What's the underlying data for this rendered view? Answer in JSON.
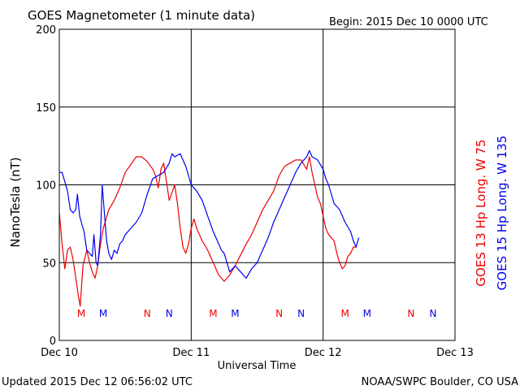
{
  "chart_data": {
    "type": "line",
    "title": "GOES Magnetometer (1 minute data)",
    "begin": "Begin:  2015 Dec 10 0000 UTC",
    "xlabel": "Universal Time",
    "ylabel": "NanoTesla (nT)",
    "footer_left": "Updated 2015 Dec 12 06:56:02 UTC",
    "footer_right": "NOAA/SWPC Boulder, CO USA",
    "x_unit": "hours since 2015 Dec 10 0000 UTC",
    "xlim": [
      0,
      72
    ],
    "ylim": [
      0,
      200
    ],
    "x_ticks": [
      {
        "x": 0,
        "label": "Dec 10"
      },
      {
        "x": 24,
        "label": "Dec 11"
      },
      {
        "x": 48,
        "label": "Dec 12"
      },
      {
        "x": 72,
        "label": "Dec 13"
      }
    ],
    "y_ticks": [
      0,
      50,
      100,
      150,
      200
    ],
    "grid": true,
    "series": [
      {
        "name": "GOES 13 Hp  Long. W 75",
        "color": "#ee0000",
        "points": [
          [
            0,
            82
          ],
          [
            0.5,
            62
          ],
          [
            1,
            46
          ],
          [
            1.5,
            58
          ],
          [
            2,
            60
          ],
          [
            2.5,
            52
          ],
          [
            3,
            40
          ],
          [
            3.5,
            28
          ],
          [
            3.8,
            22
          ],
          [
            4.3,
            48
          ],
          [
            5,
            58
          ],
          [
            5.5,
            50
          ],
          [
            6,
            44
          ],
          [
            6.5,
            40
          ],
          [
            7,
            48
          ],
          [
            7.5,
            62
          ],
          [
            8,
            72
          ],
          [
            9,
            84
          ],
          [
            10,
            90
          ],
          [
            11,
            98
          ],
          [
            12,
            108
          ],
          [
            13,
            113
          ],
          [
            14,
            118
          ],
          [
            15,
            118
          ],
          [
            16,
            115
          ],
          [
            17,
            110
          ],
          [
            17.5,
            106
          ],
          [
            18,
            98
          ],
          [
            18.5,
            110
          ],
          [
            19,
            114
          ],
          [
            19.5,
            102
          ],
          [
            20,
            90
          ],
          [
            21,
            100
          ],
          [
            21.5,
            88
          ],
          [
            22,
            72
          ],
          [
            22.5,
            60
          ],
          [
            23,
            56
          ],
          [
            23.5,
            62
          ],
          [
            24,
            72
          ],
          [
            24.5,
            78
          ],
          [
            25,
            72
          ],
          [
            26,
            64
          ],
          [
            27,
            58
          ],
          [
            28,
            50
          ],
          [
            29,
            42
          ],
          [
            30,
            38
          ],
          [
            31,
            42
          ],
          [
            32,
            48
          ],
          [
            33,
            55
          ],
          [
            34,
            62
          ],
          [
            35,
            68
          ],
          [
            36,
            76
          ],
          [
            37,
            84
          ],
          [
            38,
            90
          ],
          [
            39,
            96
          ],
          [
            40,
            106
          ],
          [
            41,
            112
          ],
          [
            42,
            114
          ],
          [
            43,
            116
          ],
          [
            44,
            116
          ],
          [
            45,
            110
          ],
          [
            45.5,
            118
          ],
          [
            46,
            108
          ],
          [
            46.5,
            100
          ],
          [
            47,
            92
          ],
          [
            47.5,
            88
          ],
          [
            48,
            80
          ],
          [
            48.5,
            72
          ],
          [
            49,
            68
          ],
          [
            50,
            64
          ],
          [
            50.5,
            56
          ],
          [
            51,
            50
          ],
          [
            51.5,
            46
          ],
          [
            52,
            48
          ],
          [
            52.5,
            54
          ],
          [
            53,
            56
          ],
          [
            53.5,
            60
          ],
          [
            54,
            60
          ]
        ]
      },
      {
        "name": "GOES 15 Hp  Long. W 135",
        "color": "#0000ee",
        "points": [
          [
            0,
            108
          ],
          [
            0.5,
            108
          ],
          [
            1,
            102
          ],
          [
            1.5,
            96
          ],
          [
            2,
            84
          ],
          [
            2.5,
            82
          ],
          [
            3,
            84
          ],
          [
            3.3,
            94
          ],
          [
            3.7,
            80
          ],
          [
            4,
            76
          ],
          [
            4.5,
            70
          ],
          [
            5,
            58
          ],
          [
            6,
            54
          ],
          [
            6.3,
            68
          ],
          [
            6.7,
            50
          ],
          [
            7,
            48
          ],
          [
            7.5,
            68
          ],
          [
            7.8,
            100
          ],
          [
            8.2,
            82
          ],
          [
            8.6,
            64
          ],
          [
            9,
            56
          ],
          [
            9.5,
            52
          ],
          [
            10,
            58
          ],
          [
            10.5,
            56
          ],
          [
            11,
            62
          ],
          [
            11.5,
            64
          ],
          [
            12,
            68
          ],
          [
            13,
            72
          ],
          [
            14,
            76
          ],
          [
            15,
            82
          ],
          [
            16,
            94
          ],
          [
            17,
            104
          ],
          [
            18,
            106
          ],
          [
            19,
            108
          ],
          [
            20,
            114
          ],
          [
            20.5,
            120
          ],
          [
            21,
            118
          ],
          [
            22,
            120
          ],
          [
            22.5,
            116
          ],
          [
            23,
            112
          ],
          [
            23.5,
            106
          ],
          [
            24,
            100
          ],
          [
            25,
            96
          ],
          [
            26,
            90
          ],
          [
            27,
            80
          ],
          [
            28,
            70
          ],
          [
            29,
            62
          ],
          [
            29.5,
            58
          ],
          [
            30,
            56
          ],
          [
            31,
            44
          ],
          [
            32,
            48
          ],
          [
            33,
            44
          ],
          [
            34,
            40
          ],
          [
            35,
            46
          ],
          [
            36,
            50
          ],
          [
            37,
            58
          ],
          [
            38,
            66
          ],
          [
            39,
            76
          ],
          [
            40,
            84
          ],
          [
            41,
            92
          ],
          [
            42,
            100
          ],
          [
            43,
            108
          ],
          [
            44,
            114
          ],
          [
            45,
            118
          ],
          [
            45.5,
            122
          ],
          [
            46,
            118
          ],
          [
            47,
            116
          ],
          [
            48,
            110
          ],
          [
            48.5,
            104
          ],
          [
            49,
            100
          ],
          [
            49.5,
            94
          ],
          [
            50,
            88
          ],
          [
            51,
            84
          ],
          [
            52,
            76
          ],
          [
            53,
            70
          ],
          [
            53.5,
            64
          ],
          [
            54,
            60
          ],
          [
            54.5,
            66
          ]
        ]
      }
    ],
    "markers": [
      {
        "x": 4,
        "label": "M",
        "color": "#ee0000"
      },
      {
        "x": 8,
        "label": "M",
        "color": "#0000ee"
      },
      {
        "x": 16,
        "label": "N",
        "color": "#ee0000"
      },
      {
        "x": 20,
        "label": "N",
        "color": "#0000ee"
      },
      {
        "x": 28,
        "label": "M",
        "color": "#ee0000"
      },
      {
        "x": 32,
        "label": "M",
        "color": "#0000ee"
      },
      {
        "x": 40,
        "label": "N",
        "color": "#ee0000"
      },
      {
        "x": 44,
        "label": "N",
        "color": "#0000ee"
      },
      {
        "x": 52,
        "label": "M",
        "color": "#ee0000"
      },
      {
        "x": 56,
        "label": "M",
        "color": "#0000ee"
      },
      {
        "x": 64,
        "label": "N",
        "color": "#ee0000"
      },
      {
        "x": 68,
        "label": "N",
        "color": "#0000ee"
      }
    ]
  }
}
